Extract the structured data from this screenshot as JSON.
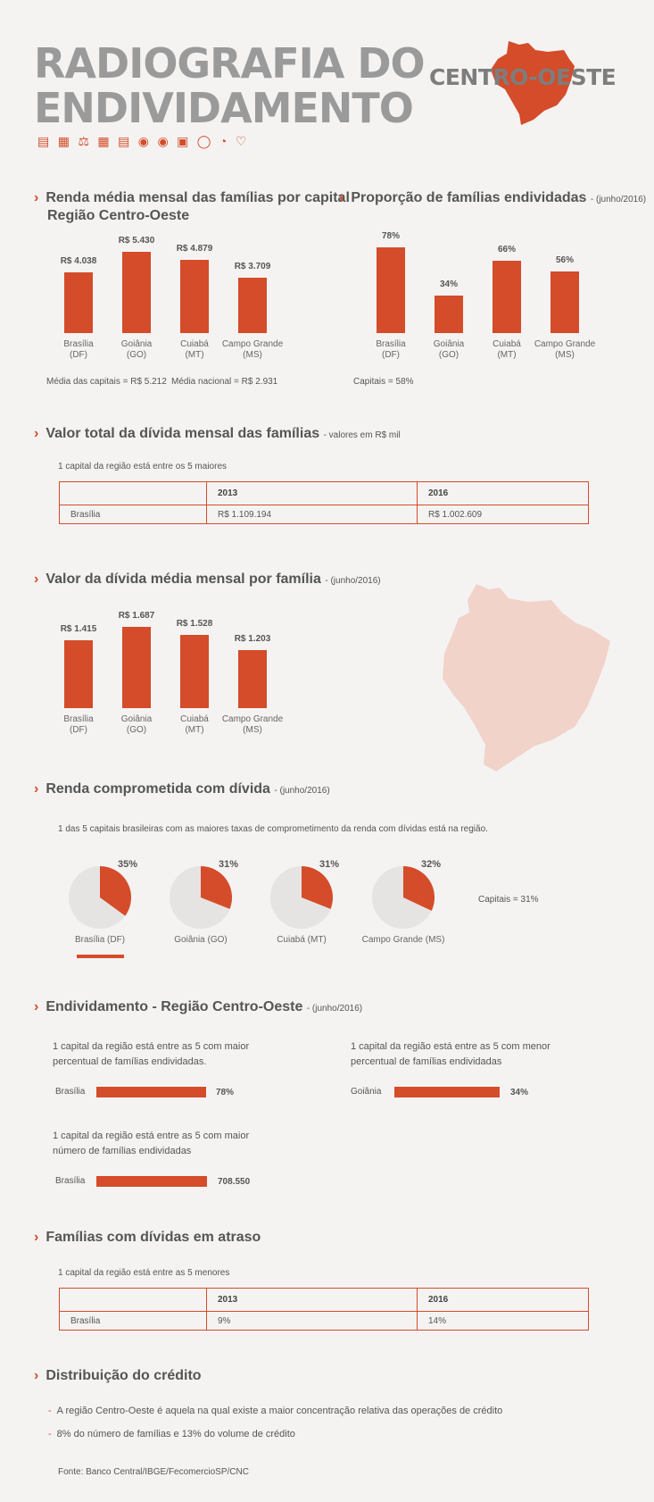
{
  "header": {
    "title_line1": "RADIOGRAFIA DO",
    "title_line2": "ENDIVIDAMENTO",
    "region": "CENTRO-OESTE",
    "icons": [
      "chart-icon",
      "document-icon",
      "scale-icon",
      "calculator-icon",
      "invoice-icon",
      "coins-icon",
      "piggy-bank-icon",
      "safe-icon",
      "shield-icon",
      "pie-icon",
      "heart-icon"
    ]
  },
  "sec1": {
    "title_line1": "Renda média mensal das famílias por capital",
    "title_line2": "Região Centro-Oeste",
    "note1": "Média das capitais = R$ 5.212",
    "note2": "Média nacional = R$ 2.931"
  },
  "sec2": {
    "title": "Proporção de famílias endividadas",
    "sub": "- (junho/2016)",
    "note": "Capitais = 58%"
  },
  "sec3": {
    "title": "Valor total da dívida mensal das famílias",
    "sub": "- valores em R$ mil",
    "note": "1 capital da região está entre os 5 maiores",
    "table": {
      "h1": "2013",
      "h2": "2016",
      "c0": "Brasília",
      "c1": "R$ 1.109.194",
      "c2": "R$ 1.002.609"
    }
  },
  "sec4": {
    "title": "Valor da dívida média mensal por família",
    "sub": "- (junho/2016)"
  },
  "sec5": {
    "title": "Renda comprometida com dívida",
    "sub": "- (junho/2016)",
    "note": "1 das 5 capitais brasileiras com as maiores taxas de comprometimento da renda com dívidas está na região.",
    "capitals_note": "Capitais = 31%",
    "pies": [
      {
        "label": "Brasília (DF)",
        "value_label": "35%",
        "value": 35
      },
      {
        "label": "Goiânia (GO)",
        "value_label": "31%",
        "value": 31
      },
      {
        "label": "Cuiabá (MT)",
        "value_label": "31%",
        "value": 31
      },
      {
        "label": "Campo Grande (MS)",
        "value_label": "32%",
        "value": 32
      }
    ]
  },
  "sec6": {
    "title": "Endividamento - Região Centro-Oeste",
    "sub": "- (junho/2016)",
    "b1_text1": "1 capital da região está entre as 5 com maior",
    "b1_text2": "percentual de famílias endividadas.",
    "b1_label": "Brasília",
    "b1_value": "78%",
    "b2_text1": "1 capital da região está entre as 5 com menor",
    "b2_text2": "percentual de famílias endividadas",
    "b2_label": "Goiânia",
    "b2_value": "34%",
    "b3_text1": "1 capital da região está entre as 5 com maior",
    "b3_text2": "número de famílias endividadas",
    "b3_label": "Brasília",
    "b3_value": "708.550"
  },
  "sec7": {
    "title": "Famílias com dívidas em atraso",
    "note": "1 capital da região está entre as 5 menores",
    "table": {
      "h1": "2013",
      "h2": "2016",
      "c0": "Brasília",
      "c1": "9%",
      "c2": "14%"
    }
  },
  "sec8": {
    "title": "Distribuição do crédito",
    "bullet1": "A região Centro-Oeste é aquela na qual existe a maior concentração relativa das operações de crédito",
    "bullet2": "8% do número de famílias e 13% do volume de crédito",
    "source": "Fonte: Banco Central/IBGE/FecomercioSP/CNC"
  },
  "colors": {
    "accent": "#d44c29",
    "map_light": "#f1d3ca",
    "pie_bg": "#e6e4e3"
  },
  "chart_data": [
    {
      "type": "bar",
      "categories": [
        "Brasília (DF)",
        "Goiânia (GO)",
        "Cuiabá (MT)",
        "Campo Grande (MS)"
      ],
      "values": [
        4038,
        5430,
        4879,
        3709
      ],
      "value_labels": [
        "R$ 4.038",
        "R$ 5.430",
        "R$ 4.879",
        "R$ 3.709"
      ],
      "cat_line1": [
        "Brasília",
        "Goiânia",
        "Cuiabá",
        "Campo Grande"
      ],
      "cat_line2": [
        "(DF)",
        "(GO)",
        "(MT)",
        "(MS)"
      ]
    },
    {
      "type": "bar",
      "categories": [
        "Brasília (DF)",
        "Goiânia (GO)",
        "Cuiabá (MT)",
        "Campo Grande (MS)"
      ],
      "values": [
        78,
        34,
        66,
        56
      ],
      "value_labels": [
        "78%",
        "34%",
        "66%",
        "56%"
      ],
      "cat_line1": [
        "Brasília",
        "Goiânia",
        "Cuiabá",
        "Campo Grande"
      ],
      "cat_line2": [
        "(DF)",
        "(GO)",
        "(MT)",
        "(MS)"
      ]
    },
    {
      "type": "bar",
      "categories": [
        "Brasília (DF)",
        "Goiânia (GO)",
        "Cuiabá (MT)",
        "Campo Grande (MS)"
      ],
      "values": [
        1415,
        1687,
        1528,
        1203
      ],
      "value_labels": [
        "R$ 1.415",
        "R$ 1.687",
        "R$ 1.528",
        "R$ 1.203"
      ],
      "cat_line1": [
        "Brasília",
        "Goiânia",
        "Cuiabá",
        "Campo Grande"
      ],
      "cat_line2": [
        "(DF)",
        "(GO)",
        "(MT)",
        "(MS)"
      ]
    }
  ]
}
